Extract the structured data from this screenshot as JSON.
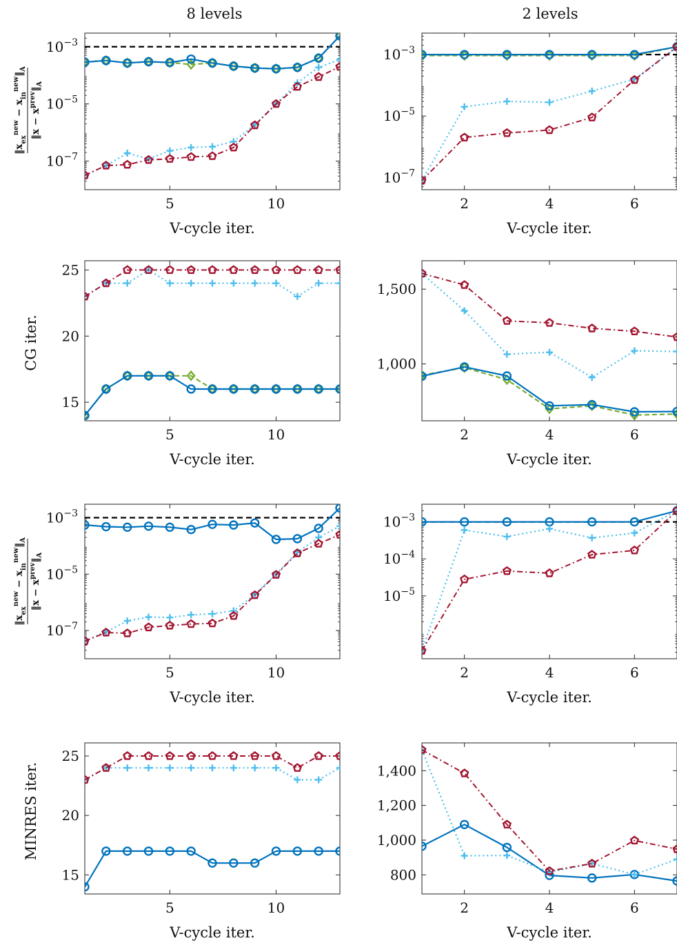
{
  "column_titles": [
    "8 levels",
    "2 levels"
  ],
  "row_ylabels": [
    "‖x_ex^new − x_in^new‖_A / ‖x − x^prev‖_A",
    "CG iter.",
    "‖x_ex^new − x_in^new‖_A / ‖x − x^prev‖_A",
    "MINRES iter."
  ],
  "colors": {
    "blue": "#0072bd",
    "green": "#77ac30",
    "cyan": "#4dbeee",
    "red": "#a2142f",
    "black": "#000000"
  },
  "chart_data": [
    {
      "type": "line",
      "panel": "8 levels / CG error",
      "log": true,
      "xlabel": "V-cycle iter.",
      "ylabel": "‖x_ex^new − x_in^new‖_A / ‖x − x^prev‖_A",
      "xlim": [
        1,
        13
      ],
      "ylim": [
        1e-08,
        0.003
      ],
      "xticks": [
        5,
        10
      ],
      "xtick_labels": [
        "5",
        "10"
      ],
      "yticks": [
        0.001,
        1e-05,
        1e-07
      ],
      "ytick_labels": [
        "10^-3",
        "10^-5",
        "10^-7"
      ],
      "hline": 0.001,
      "x": [
        1,
        2,
        3,
        4,
        5,
        6,
        7,
        8,
        9,
        10,
        11,
        12,
        13
      ],
      "series": [
        {
          "style": "green",
          "values": [
            0.00029,
            0.00033,
            0.00027,
            0.0003,
            0.00028,
            0.00024,
            0.00027,
            0.00021,
            0.00018,
            0.00017,
            0.00019,
            0.0004,
            0.0024
          ]
        },
        {
          "style": "blue",
          "values": [
            0.00029,
            0.00033,
            0.00027,
            0.0003,
            0.00028,
            0.00037,
            0.00027,
            0.00021,
            0.00018,
            0.00017,
            0.00019,
            0.0004,
            0.0024
          ]
        },
        {
          "style": "cyan",
          "values": [
            3.2e-08,
            7e-08,
            1.9e-07,
            1.2e-07,
            2.3e-07,
            3e-07,
            3.2e-07,
            4.8e-07,
            1.9e-06,
            1e-05,
            5.5e-05,
            0.00019,
            0.00036
          ]
        },
        {
          "style": "red",
          "values": [
            3.2e-08,
            7e-08,
            7.5e-08,
            1.1e-07,
            1.2e-07,
            1.4e-07,
            1.5e-07,
            3e-07,
            1.8e-06,
            1e-05,
            4e-05,
            8.8e-05,
            0.0002
          ]
        }
      ]
    },
    {
      "type": "line",
      "panel": "2 levels / CG error",
      "log": true,
      "xlabel": "V-cycle iter.",
      "ylabel": "",
      "xlim": [
        1,
        7
      ],
      "ylim": [
        4e-08,
        0.005
      ],
      "xticks": [
        2,
        4,
        6
      ],
      "xtick_labels": [
        "2",
        "4",
        "6"
      ],
      "yticks": [
        0.001,
        1e-05,
        1e-07
      ],
      "ytick_labels": [
        "10^-3",
        "10^-5",
        "10^-7"
      ],
      "hline": 0.001,
      "x": [
        1,
        2,
        3,
        4,
        5,
        6,
        7
      ],
      "series": [
        {
          "style": "green",
          "values": [
            0.00093,
            0.00093,
            0.00093,
            0.00093,
            0.00093,
            0.00093,
            0.0018
          ]
        },
        {
          "style": "blue",
          "values": [
            0.001,
            0.001,
            0.001,
            0.001,
            0.001,
            0.001,
            0.0018
          ]
        },
        {
          "style": "cyan",
          "values": [
            8e-08,
            2e-05,
            3e-05,
            2.8e-05,
            6.5e-05,
            0.00016,
            0.0017
          ]
        },
        {
          "style": "red",
          "values": [
            8e-08,
            2e-06,
            2.8e-06,
            3.5e-06,
            9e-06,
            0.00015,
            0.0018
          ]
        }
      ]
    },
    {
      "type": "line",
      "panel": "8 levels / CG iter.",
      "log": false,
      "xlabel": "V-cycle iter.",
      "ylabel": "CG iter.",
      "xlim": [
        1,
        13
      ],
      "ylim": [
        13.6,
        25.7
      ],
      "xticks": [
        5,
        10
      ],
      "xtick_labels": [
        "5",
        "10"
      ],
      "yticks": [
        15,
        20,
        25
      ],
      "ytick_labels": [
        "15",
        "20",
        "25"
      ],
      "x": [
        1,
        2,
        3,
        4,
        5,
        6,
        7,
        8,
        9,
        10,
        11,
        12,
        13
      ],
      "series": [
        {
          "style": "green",
          "values": [
            14,
            16,
            17,
            17,
            17,
            17,
            16,
            16,
            16,
            16,
            16,
            16,
            16
          ]
        },
        {
          "style": "blue",
          "values": [
            14,
            16,
            17,
            17,
            17,
            16,
            16,
            16,
            16,
            16,
            16,
            16,
            16
          ]
        },
        {
          "style": "cyan",
          "values": [
            23,
            24,
            24,
            25,
            24,
            24,
            24,
            24,
            24,
            24,
            23,
            24,
            24
          ]
        },
        {
          "style": "red",
          "values": [
            23,
            24,
            25,
            25,
            25,
            25,
            25,
            25,
            25,
            25,
            25,
            25,
            25
          ]
        }
      ]
    },
    {
      "type": "line",
      "panel": "2 levels / CG iter.",
      "log": false,
      "xlabel": "V-cycle iter.",
      "ylabel": "",
      "xlim": [
        1,
        7
      ],
      "ylim": [
        620,
        1690
      ],
      "xticks": [
        2,
        4,
        6
      ],
      "xtick_labels": [
        "2",
        "4",
        "6"
      ],
      "yticks": [
        1000,
        1500
      ],
      "ytick_labels": [
        "1,000",
        "1,500"
      ],
      "x": [
        1,
        2,
        3,
        4,
        5,
        6,
        7
      ],
      "series": [
        {
          "style": "green",
          "values": [
            925,
            975,
            895,
            700,
            720,
            658,
            665
          ]
        },
        {
          "style": "blue",
          "values": [
            918,
            980,
            920,
            720,
            728,
            680,
            682
          ]
        },
        {
          "style": "cyan",
          "values": [
            1605,
            1355,
            1065,
            1078,
            910,
            1088,
            1083
          ]
        },
        {
          "style": "red",
          "values": [
            1605,
            1528,
            1288,
            1275,
            1238,
            1218,
            1180
          ]
        }
      ]
    },
    {
      "type": "line",
      "panel": "8 levels / MINRES error",
      "log": true,
      "xlabel": "V-cycle iter.",
      "ylabel": "‖x_ex^new − x_in^new‖_A / ‖x − x^prev‖_A",
      "xlim": [
        1,
        13
      ],
      "ylim": [
        1e-08,
        0.003
      ],
      "xticks": [
        5,
        10
      ],
      "xtick_labels": [
        "5",
        "10"
      ],
      "yticks": [
        0.001,
        1e-05,
        1e-07
      ],
      "ytick_labels": [
        "10^-3",
        "10^-5",
        "10^-7"
      ],
      "hline": 0.001,
      "x": [
        1,
        2,
        3,
        4,
        5,
        6,
        7,
        8,
        9,
        10,
        11,
        12,
        13
      ],
      "series": [
        {
          "style": "blue",
          "values": [
            0.00055,
            0.00048,
            0.00046,
            0.0005,
            0.00046,
            0.00038,
            0.00058,
            0.00055,
            0.00065,
            0.00017,
            0.00018,
            0.00042,
            0.0022
          ]
        },
        {
          "style": "cyan",
          "values": [
            4.2e-08,
            9e-08,
            2.2e-07,
            3e-07,
            2.9e-07,
            3.6e-07,
            3.9e-07,
            5e-07,
            1.9e-06,
            1e-05,
            6e-05,
            0.0002,
            0.0005
          ]
        },
        {
          "style": "red",
          "values": [
            4.2e-08,
            8.5e-08,
            8e-08,
            1.3e-07,
            1.5e-07,
            1.7e-07,
            1.8e-07,
            3.3e-07,
            1.8e-06,
            9.5e-06,
            5.5e-05,
            0.00012,
            0.00025
          ]
        }
      ]
    },
    {
      "type": "line",
      "panel": "2 levels / MINRES error",
      "log": true,
      "xlabel": "V-cycle iter.",
      "ylabel": "",
      "xlim": [
        1,
        7
      ],
      "ylim": [
        2e-07,
        0.003
      ],
      "xticks": [
        2,
        4,
        6
      ],
      "xtick_labels": [
        "2",
        "4",
        "6"
      ],
      "yticks": [
        0.001,
        0.0001,
        1e-05
      ],
      "ytick_labels": [
        "10^-3",
        "10^-4",
        "10^-5"
      ],
      "hline": 0.001,
      "x": [
        1,
        2,
        3,
        4,
        5,
        6,
        7
      ],
      "series": [
        {
          "style": "blue",
          "values": [
            0.001,
            0.001,
            0.001,
            0.001,
            0.001,
            0.001,
            0.002
          ]
        },
        {
          "style": "cyan",
          "values": [
            3.3e-07,
            0.0006,
            0.0004,
            0.00065,
            0.00037,
            0.0005,
            0.002
          ]
        },
        {
          "style": "red",
          "values": [
            3.3e-07,
            2.8e-05,
            4.7e-05,
            4.1e-05,
            0.00013,
            0.00017,
            0.002
          ]
        }
      ]
    },
    {
      "type": "line",
      "panel": "8 levels / MINRES iter.",
      "log": false,
      "xlabel": "V-cycle iter.",
      "ylabel": "MINRES iter.",
      "xlim": [
        1,
        13
      ],
      "ylim": [
        13.4,
        26.1
      ],
      "xticks": [
        5,
        10
      ],
      "xtick_labels": [
        "5",
        "10"
      ],
      "yticks": [
        15,
        20,
        25
      ],
      "ytick_labels": [
        "15",
        "20",
        "25"
      ],
      "x": [
        1,
        2,
        3,
        4,
        5,
        6,
        7,
        8,
        9,
        10,
        11,
        12,
        13
      ],
      "series": [
        {
          "style": "blue",
          "values": [
            14,
            17,
            17,
            17,
            17,
            17,
            16,
            16,
            16,
            17,
            17,
            17,
            17
          ]
        },
        {
          "style": "cyan",
          "values": [
            23,
            24,
            24,
            24,
            24,
            24,
            24,
            24,
            24,
            24,
            23,
            23,
            24
          ]
        },
        {
          "style": "red",
          "values": [
            23,
            24,
            25,
            25,
            25,
            25,
            25,
            25,
            25,
            25,
            24,
            25,
            25
          ]
        }
      ]
    },
    {
      "type": "line",
      "panel": "2 levels / MINRES iter.",
      "log": false,
      "xlabel": "V-cycle iter.",
      "ylabel": "",
      "xlim": [
        1,
        7
      ],
      "ylim": [
        690,
        1560
      ],
      "xticks": [
        2,
        4,
        6
      ],
      "xtick_labels": [
        "2",
        "4",
        "6"
      ],
      "yticks": [
        800,
        1000,
        1200,
        1400
      ],
      "ytick_labels": [
        "800",
        "1,000",
        "1,200",
        "1,400"
      ],
      "x": [
        1,
        2,
        3,
        4,
        5,
        6,
        7
      ],
      "series": [
        {
          "style": "blue",
          "values": [
            965,
            1090,
            958,
            797,
            782,
            802,
            765
          ]
        },
        {
          "style": "cyan",
          "values": [
            1520,
            910,
            912,
            815,
            865,
            802,
            890
          ]
        },
        {
          "style": "red",
          "values": [
            1520,
            1385,
            1090,
            822,
            865,
            998,
            948
          ]
        }
      ]
    }
  ]
}
